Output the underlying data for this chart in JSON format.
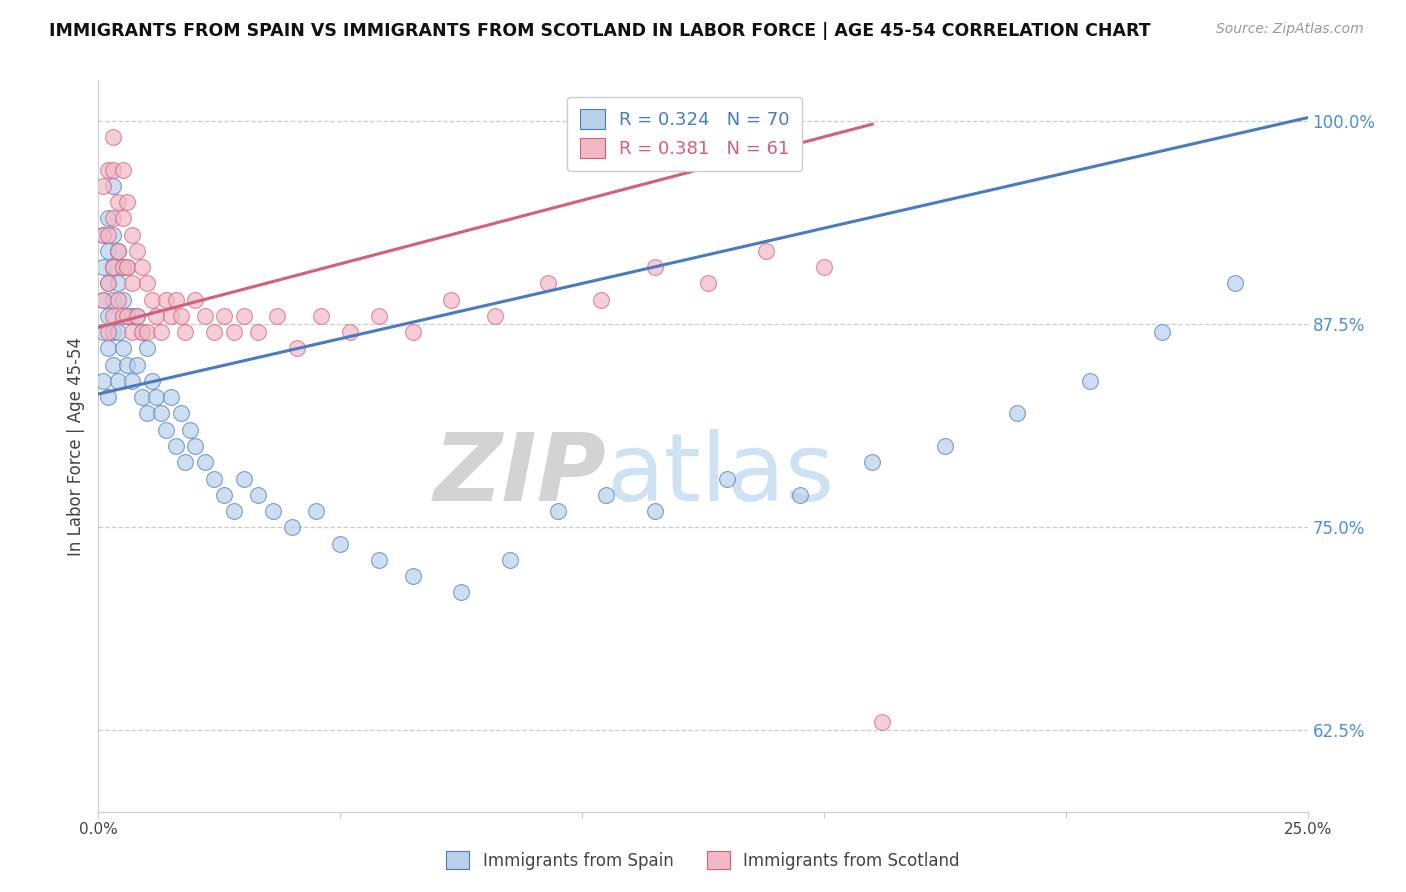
{
  "title": "IMMIGRANTS FROM SPAIN VS IMMIGRANTS FROM SCOTLAND IN LABOR FORCE | AGE 45-54 CORRELATION CHART",
  "source": "Source: ZipAtlas.com",
  "ylabel": "In Labor Force | Age 45-54",
  "watermark_zip": "ZIP",
  "watermark_atlas": "atlas",
  "spain_R": 0.324,
  "spain_N": 70,
  "scotland_R": 0.381,
  "scotland_N": 61,
  "spain_color": "#b8d0ea",
  "scotland_color": "#f2b8c6",
  "spain_line_color": "#4a7bbf",
  "scotland_line_color": "#d45f7a",
  "right_tick_color": "#4a90d9",
  "xlim": [
    0.0,
    0.25
  ],
  "ylim": [
    0.575,
    1.025
  ],
  "yticks": [
    0.625,
    0.75,
    0.875,
    1.0
  ],
  "ytick_labels": [
    "62.5%",
    "75.0%",
    "87.5%",
    "100.0%"
  ],
  "xticks": [
    0.0,
    0.05,
    0.1,
    0.15,
    0.2,
    0.25
  ],
  "xtick_labels": [
    "0.0%",
    "",
    "",
    "",
    "",
    "25.0%"
  ],
  "spain_x": [
    0.001,
    0.001,
    0.001,
    0.001,
    0.001,
    0.002,
    0.002,
    0.002,
    0.002,
    0.002,
    0.002,
    0.003,
    0.003,
    0.003,
    0.003,
    0.003,
    0.003,
    0.004,
    0.004,
    0.004,
    0.004,
    0.005,
    0.005,
    0.005,
    0.006,
    0.006,
    0.006,
    0.007,
    0.007,
    0.008,
    0.008,
    0.009,
    0.009,
    0.01,
    0.01,
    0.011,
    0.012,
    0.013,
    0.014,
    0.015,
    0.016,
    0.017,
    0.018,
    0.019,
    0.02,
    0.022,
    0.024,
    0.026,
    0.028,
    0.03,
    0.033,
    0.036,
    0.04,
    0.045,
    0.05,
    0.058,
    0.065,
    0.075,
    0.085,
    0.095,
    0.105,
    0.115,
    0.13,
    0.145,
    0.16,
    0.175,
    0.19,
    0.205,
    0.22,
    0.235
  ],
  "spain_y": [
    0.84,
    0.87,
    0.89,
    0.91,
    0.93,
    0.83,
    0.86,
    0.88,
    0.9,
    0.92,
    0.94,
    0.85,
    0.87,
    0.89,
    0.91,
    0.93,
    0.96,
    0.84,
    0.87,
    0.9,
    0.92,
    0.86,
    0.89,
    0.91,
    0.85,
    0.88,
    0.91,
    0.84,
    0.88,
    0.85,
    0.88,
    0.83,
    0.87,
    0.82,
    0.86,
    0.84,
    0.83,
    0.82,
    0.81,
    0.83,
    0.8,
    0.82,
    0.79,
    0.81,
    0.8,
    0.79,
    0.78,
    0.77,
    0.76,
    0.78,
    0.77,
    0.76,
    0.75,
    0.76,
    0.74,
    0.73,
    0.72,
    0.71,
    0.73,
    0.76,
    0.77,
    0.76,
    0.78,
    0.77,
    0.79,
    0.8,
    0.82,
    0.84,
    0.87,
    0.9
  ],
  "scotland_x": [
    0.001,
    0.001,
    0.001,
    0.002,
    0.002,
    0.002,
    0.002,
    0.003,
    0.003,
    0.003,
    0.003,
    0.003,
    0.004,
    0.004,
    0.004,
    0.005,
    0.005,
    0.005,
    0.005,
    0.006,
    0.006,
    0.006,
    0.007,
    0.007,
    0.007,
    0.008,
    0.008,
    0.009,
    0.009,
    0.01,
    0.01,
    0.011,
    0.012,
    0.013,
    0.014,
    0.015,
    0.016,
    0.017,
    0.018,
    0.02,
    0.022,
    0.024,
    0.026,
    0.028,
    0.03,
    0.033,
    0.037,
    0.041,
    0.046,
    0.052,
    0.058,
    0.065,
    0.073,
    0.082,
    0.093,
    0.104,
    0.115,
    0.126,
    0.138,
    0.15,
    0.162
  ],
  "scotland_y": [
    0.89,
    0.93,
    0.96,
    0.87,
    0.9,
    0.93,
    0.97,
    0.88,
    0.91,
    0.94,
    0.97,
    0.99,
    0.89,
    0.92,
    0.95,
    0.88,
    0.91,
    0.94,
    0.97,
    0.88,
    0.91,
    0.95,
    0.87,
    0.9,
    0.93,
    0.88,
    0.92,
    0.87,
    0.91,
    0.87,
    0.9,
    0.89,
    0.88,
    0.87,
    0.89,
    0.88,
    0.89,
    0.88,
    0.87,
    0.89,
    0.88,
    0.87,
    0.88,
    0.87,
    0.88,
    0.87,
    0.88,
    0.86,
    0.88,
    0.87,
    0.88,
    0.87,
    0.89,
    0.88,
    0.9,
    0.89,
    0.91,
    0.9,
    0.92,
    0.91,
    0.63
  ],
  "spain_line_x": [
    0.0,
    0.25
  ],
  "spain_line_y": [
    0.832,
    1.002
  ],
  "scotland_line_x": [
    0.0,
    0.16
  ],
  "scotland_line_y": [
    0.873,
    0.998
  ]
}
